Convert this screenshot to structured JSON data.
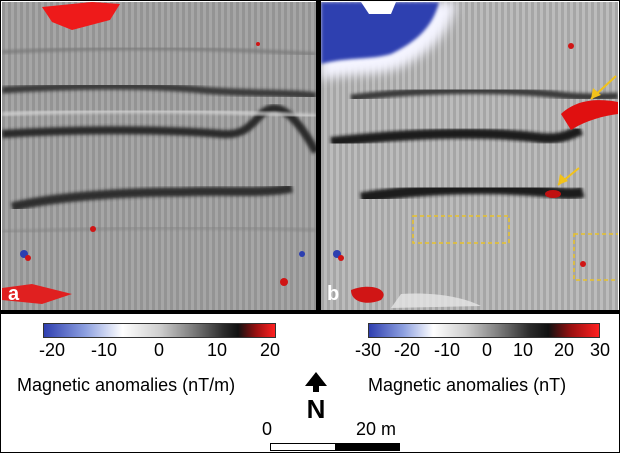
{
  "panels": {
    "a": {
      "label": "a"
    },
    "b": {
      "label": "b"
    }
  },
  "colorbars": {
    "left": {
      "ticks": [
        "-20",
        "-10",
        "0",
        "10",
        "20"
      ],
      "title": "Magnetic anomalies (nT/m)"
    },
    "right": {
      "ticks": [
        "-30",
        "-20",
        "-10",
        "0",
        "10",
        "20",
        "30"
      ],
      "title": "Magnetic anomalies (nT)"
    }
  },
  "north_arrow": {
    "letter": "N"
  },
  "scale_bar": {
    "start": "0",
    "end": "20 m"
  },
  "colors": {
    "negative": "#2f3fb0",
    "positive": "#ff2020",
    "arrow": "#f2c21a",
    "box": "#e8c22a"
  }
}
